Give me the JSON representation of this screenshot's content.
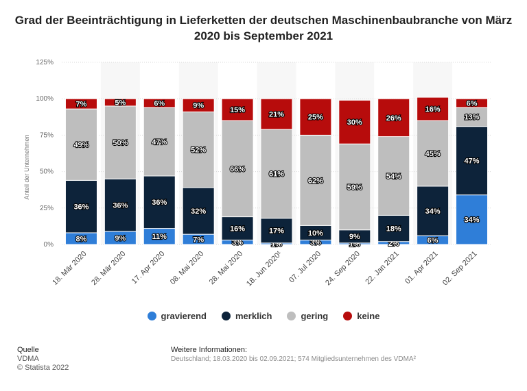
{
  "title": "Grad der Beeinträchtigung in Lieferketten der deutschen Maschinenbaubranche von März 2020 bis September 2021",
  "colors": {
    "gravierend": "#2f7ed8",
    "merklich": "#0d233a",
    "gering": "#bebebe",
    "keine": "#b70c0c"
  },
  "chart_data": {
    "type": "bar",
    "stacked": true,
    "title": "Grad der Beeinträchtigung in Lieferketten der deutschen Maschinenbaubranche von März 2020 bis September 2021",
    "xlabel": "",
    "ylabel": "Anteil der Unternehmen",
    "ylim": [
      0,
      125
    ],
    "yticks": [
      "0%",
      "25%",
      "50%",
      "75%",
      "100%",
      "125%"
    ],
    "categories": [
      "18. Mär 2020",
      "28. Mär 2020",
      "17. Apr 2020",
      "08. Mai 2020",
      "28. Mai 2020",
      "18. Jun 2020¹",
      "07. Jul 2020",
      "24. Sep 2020",
      "22. Jan 2021",
      "01. Apr 2021",
      "02. Sep 2021"
    ],
    "series": [
      {
        "name": "gravierend",
        "values": [
          8,
          9,
          11,
          7,
          3,
          1,
          3,
          1,
          2,
          6,
          34
        ]
      },
      {
        "name": "merklich",
        "values": [
          36,
          36,
          36,
          32,
          16,
          17,
          10,
          9,
          18,
          34,
          47
        ]
      },
      {
        "name": "gering",
        "values": [
          49,
          50,
          47,
          52,
          66,
          61,
          62,
          59,
          54,
          45,
          13
        ]
      },
      {
        "name": "keine",
        "values": [
          7,
          5,
          6,
          9,
          15,
          21,
          25,
          30,
          26,
          16,
          6
        ]
      }
    ],
    "value_labels": {
      "gravierend": [
        "8%",
        "9%",
        "11%",
        "7%",
        "3%",
        "1%",
        "3%",
        "1%",
        "2%",
        "6%",
        "34%"
      ],
      "merklich": [
        "36%",
        "36%",
        "36%",
        "32%",
        "16%",
        "17%",
        "10%",
        "9%",
        "18%",
        "34%",
        "47%"
      ],
      "gering": [
        "49%",
        "50%",
        "47%",
        "52%",
        "66%",
        "61%",
        "62%",
        "59%",
        "54%",
        "45%",
        "13%"
      ],
      "keine": [
        "7%",
        "5%",
        "6%",
        "9%",
        "15%",
        "21%",
        "25%",
        "30%",
        "26%",
        "16%",
        "6%"
      ]
    }
  },
  "legend": {
    "items": [
      {
        "label": "gravierend",
        "color": "#2f7ed8"
      },
      {
        "label": "merklich",
        "color": "#0d233a"
      },
      {
        "label": "gering",
        "color": "#bebebe"
      },
      {
        "label": "keine",
        "color": "#b70c0c"
      }
    ]
  },
  "footer": {
    "source_heading": "Quelle",
    "source_lines": [
      "VDMA",
      "© Statista 2022"
    ],
    "info_heading": "Weitere Informationen:",
    "info_text": "Deutschland; 18.03.2020 bis 02.09.2021; 574 Mitgliedsunternehmen des VDMA²"
  }
}
